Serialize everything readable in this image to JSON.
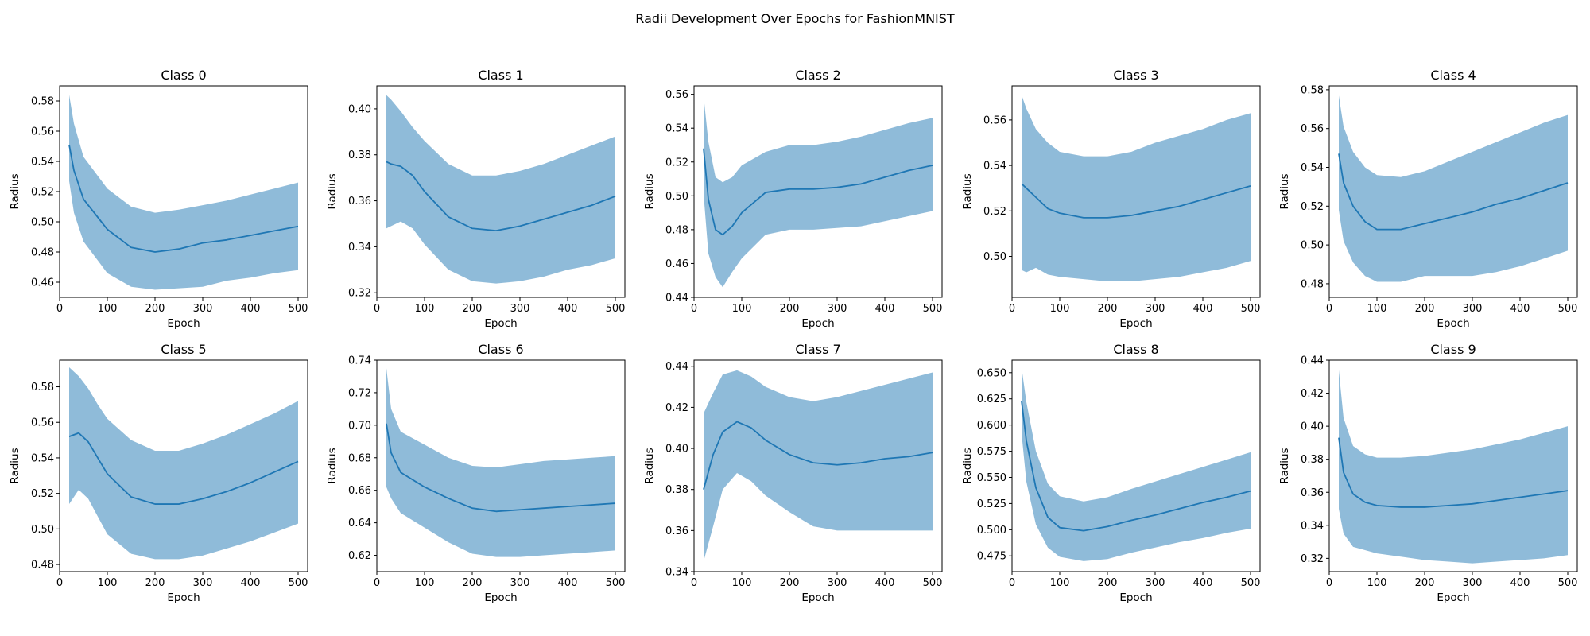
{
  "suptitle": "Radii Development Over Epochs for FashionMNIST",
  "colors": {
    "line": "#1f77b4",
    "band": "#1f77b4",
    "band_opacity": 0.5,
    "axes": "#000000",
    "background": "#ffffff"
  },
  "chart_data": [
    {
      "type": "line",
      "title": "Class 0",
      "xlabel": "Epoch",
      "ylabel": "Radius",
      "xlim": [
        0,
        520
      ],
      "ylim": [
        0.45,
        0.59
      ],
      "xticks": [
        0,
        100,
        200,
        300,
        400,
        500
      ],
      "yticks": [
        0.46,
        0.48,
        0.5,
        0.52,
        0.54,
        0.56,
        0.58
      ],
      "ytick_labels": [
        "0.46",
        "0.48",
        "0.50",
        "0.52",
        "0.54",
        "0.56",
        "0.58"
      ],
      "grid": false,
      "x": [
        20,
        30,
        50,
        100,
        150,
        200,
        250,
        300,
        350,
        400,
        450,
        500
      ],
      "series": [
        {
          "mean": [
            0.551,
            0.534,
            0.515,
            0.495,
            0.483,
            0.48,
            0.482,
            0.486,
            0.488,
            0.491,
            0.494,
            0.497
          ],
          "lower": [
            0.527,
            0.506,
            0.487,
            0.466,
            0.457,
            0.455,
            0.456,
            0.457,
            0.461,
            0.463,
            0.466,
            0.468
          ],
          "upper": [
            0.584,
            0.565,
            0.543,
            0.522,
            0.51,
            0.506,
            0.508,
            0.511,
            0.514,
            0.518,
            0.522,
            0.526
          ]
        }
      ]
    },
    {
      "type": "line",
      "title": "Class 1",
      "xlabel": "Epoch",
      "ylabel": "Radius",
      "xlim": [
        0,
        520
      ],
      "ylim": [
        0.318,
        0.41
      ],
      "xticks": [
        0,
        100,
        200,
        300,
        400,
        500
      ],
      "yticks": [
        0.32,
        0.34,
        0.36,
        0.38,
        0.4
      ],
      "ytick_labels": [
        "0.32",
        "0.34",
        "0.36",
        "0.38",
        "0.40"
      ],
      "grid": false,
      "x": [
        20,
        30,
        50,
        75,
        100,
        150,
        200,
        250,
        300,
        350,
        400,
        450,
        500
      ],
      "series": [
        {
          "mean": [
            0.377,
            0.376,
            0.375,
            0.371,
            0.364,
            0.353,
            0.348,
            0.347,
            0.349,
            0.352,
            0.355,
            0.358,
            0.362
          ],
          "lower": [
            0.348,
            0.349,
            0.351,
            0.348,
            0.341,
            0.33,
            0.325,
            0.324,
            0.325,
            0.327,
            0.33,
            0.332,
            0.335
          ],
          "upper": [
            0.406,
            0.404,
            0.399,
            0.392,
            0.386,
            0.376,
            0.371,
            0.371,
            0.373,
            0.376,
            0.38,
            0.384,
            0.388
          ]
        }
      ]
    },
    {
      "type": "line",
      "title": "Class 2",
      "xlabel": "Epoch",
      "ylabel": "Radius",
      "xlim": [
        0,
        520
      ],
      "ylim": [
        0.44,
        0.565
      ],
      "xticks": [
        0,
        100,
        200,
        300,
        400,
        500
      ],
      "yticks": [
        0.44,
        0.46,
        0.48,
        0.5,
        0.52,
        0.54,
        0.56
      ],
      "ytick_labels": [
        "0.44",
        "0.46",
        "0.48",
        "0.50",
        "0.52",
        "0.54",
        "0.56"
      ],
      "grid": false,
      "x": [
        20,
        30,
        45,
        60,
        80,
        100,
        150,
        200,
        250,
        300,
        350,
        400,
        450,
        500
      ],
      "series": [
        {
          "mean": [
            0.528,
            0.498,
            0.48,
            0.477,
            0.482,
            0.49,
            0.502,
            0.504,
            0.504,
            0.505,
            0.507,
            0.511,
            0.515,
            0.518
          ],
          "lower": [
            0.501,
            0.466,
            0.452,
            0.446,
            0.455,
            0.463,
            0.477,
            0.48,
            0.48,
            0.481,
            0.482,
            0.485,
            0.488,
            0.491
          ],
          "upper": [
            0.559,
            0.532,
            0.511,
            0.508,
            0.511,
            0.518,
            0.526,
            0.53,
            0.53,
            0.532,
            0.535,
            0.539,
            0.543,
            0.546
          ]
        }
      ]
    },
    {
      "type": "line",
      "title": "Class 3",
      "xlabel": "Epoch",
      "ylabel": "Radius",
      "xlim": [
        0,
        520
      ],
      "ylim": [
        0.482,
        0.575
      ],
      "xticks": [
        0,
        100,
        200,
        300,
        400,
        500
      ],
      "yticks": [
        0.5,
        0.52,
        0.54,
        0.56
      ],
      "ytick_labels": [
        "0.50",
        "0.52",
        "0.54",
        "0.56"
      ],
      "grid": false,
      "x": [
        20,
        30,
        50,
        75,
        100,
        150,
        200,
        250,
        300,
        350,
        400,
        450,
        500
      ],
      "series": [
        {
          "mean": [
            0.532,
            0.53,
            0.526,
            0.521,
            0.519,
            0.517,
            0.517,
            0.518,
            0.52,
            0.522,
            0.525,
            0.528,
            0.531
          ],
          "lower": [
            0.494,
            0.493,
            0.495,
            0.492,
            0.491,
            0.49,
            0.489,
            0.489,
            0.49,
            0.491,
            0.493,
            0.495,
            0.498
          ],
          "upper": [
            0.571,
            0.565,
            0.556,
            0.55,
            0.546,
            0.544,
            0.544,
            0.546,
            0.55,
            0.553,
            0.556,
            0.56,
            0.563
          ]
        }
      ]
    },
    {
      "type": "line",
      "title": "Class 4",
      "xlabel": "Epoch",
      "ylabel": "Radius",
      "xlim": [
        0,
        520
      ],
      "ylim": [
        0.473,
        0.582
      ],
      "xticks": [
        0,
        100,
        200,
        300,
        400,
        500
      ],
      "yticks": [
        0.48,
        0.5,
        0.52,
        0.54,
        0.56,
        0.58
      ],
      "ytick_labels": [
        "0.48",
        "0.50",
        "0.52",
        "0.54",
        "0.56",
        "0.58"
      ],
      "grid": false,
      "x": [
        20,
        30,
        50,
        75,
        100,
        150,
        200,
        250,
        300,
        350,
        400,
        450,
        500
      ],
      "series": [
        {
          "mean": [
            0.547,
            0.532,
            0.52,
            0.512,
            0.508,
            0.508,
            0.511,
            0.514,
            0.517,
            0.521,
            0.524,
            0.528,
            0.532
          ],
          "lower": [
            0.518,
            0.502,
            0.491,
            0.484,
            0.481,
            0.481,
            0.484,
            0.484,
            0.484,
            0.486,
            0.489,
            0.493,
            0.497
          ],
          "upper": [
            0.577,
            0.561,
            0.548,
            0.54,
            0.536,
            0.535,
            0.538,
            0.543,
            0.548,
            0.553,
            0.558,
            0.563,
            0.567
          ]
        }
      ]
    },
    {
      "type": "line",
      "title": "Class 5",
      "xlabel": "Epoch",
      "ylabel": "Radius",
      "xlim": [
        0,
        520
      ],
      "ylim": [
        0.476,
        0.595
      ],
      "xticks": [
        0,
        100,
        200,
        300,
        400,
        500
      ],
      "yticks": [
        0.48,
        0.5,
        0.52,
        0.54,
        0.56,
        0.58
      ],
      "ytick_labels": [
        "0.48",
        "0.50",
        "0.52",
        "0.54",
        "0.56",
        "0.58"
      ],
      "grid": false,
      "x": [
        20,
        40,
        60,
        80,
        100,
        150,
        200,
        250,
        300,
        350,
        400,
        450,
        500
      ],
      "series": [
        {
          "mean": [
            0.552,
            0.554,
            0.549,
            0.54,
            0.531,
            0.518,
            0.514,
            0.514,
            0.517,
            0.521,
            0.526,
            0.532,
            0.538
          ],
          "lower": [
            0.514,
            0.522,
            0.517,
            0.507,
            0.497,
            0.486,
            0.483,
            0.483,
            0.485,
            0.489,
            0.493,
            0.498,
            0.503
          ],
          "upper": [
            0.591,
            0.586,
            0.579,
            0.57,
            0.562,
            0.55,
            0.544,
            0.544,
            0.548,
            0.553,
            0.559,
            0.565,
            0.572
          ]
        }
      ]
    },
    {
      "type": "line",
      "title": "Class 6",
      "xlabel": "Epoch",
      "ylabel": "Radius",
      "xlim": [
        0,
        520
      ],
      "ylim": [
        0.61,
        0.74
      ],
      "xticks": [
        0,
        100,
        200,
        300,
        400,
        500
      ],
      "yticks": [
        0.62,
        0.64,
        0.66,
        0.68,
        0.7,
        0.72,
        0.74
      ],
      "ytick_labels": [
        "0.62",
        "0.64",
        "0.66",
        "0.68",
        "0.70",
        "0.72",
        "0.74"
      ],
      "grid": false,
      "x": [
        20,
        30,
        50,
        100,
        150,
        200,
        250,
        300,
        350,
        400,
        450,
        500
      ],
      "series": [
        {
          "mean": [
            0.701,
            0.683,
            0.671,
            0.662,
            0.655,
            0.649,
            0.647,
            0.648,
            0.649,
            0.65,
            0.651,
            0.652
          ],
          "lower": [
            0.662,
            0.655,
            0.646,
            0.637,
            0.628,
            0.621,
            0.619,
            0.619,
            0.62,
            0.621,
            0.622,
            0.623
          ],
          "upper": [
            0.735,
            0.71,
            0.696,
            0.688,
            0.68,
            0.675,
            0.674,
            0.676,
            0.678,
            0.679,
            0.68,
            0.681
          ]
        }
      ]
    },
    {
      "type": "line",
      "title": "Class 7",
      "xlabel": "Epoch",
      "ylabel": "Radius",
      "xlim": [
        0,
        520
      ],
      "ylim": [
        0.34,
        0.443
      ],
      "xticks": [
        0,
        100,
        200,
        300,
        400,
        500
      ],
      "yticks": [
        0.34,
        0.36,
        0.38,
        0.4,
        0.42,
        0.44
      ],
      "ytick_labels": [
        "0.34",
        "0.36",
        "0.38",
        "0.40",
        "0.42",
        "0.44"
      ],
      "grid": false,
      "x": [
        20,
        40,
        60,
        90,
        120,
        150,
        200,
        250,
        300,
        350,
        400,
        450,
        500
      ],
      "series": [
        {
          "mean": [
            0.38,
            0.397,
            0.408,
            0.413,
            0.41,
            0.404,
            0.397,
            0.393,
            0.392,
            0.393,
            0.395,
            0.396,
            0.398
          ],
          "lower": [
            0.345,
            0.362,
            0.38,
            0.388,
            0.384,
            0.377,
            0.369,
            0.362,
            0.36,
            0.36,
            0.36,
            0.36,
            0.36
          ],
          "upper": [
            0.417,
            0.427,
            0.436,
            0.438,
            0.435,
            0.43,
            0.425,
            0.423,
            0.425,
            0.428,
            0.431,
            0.434,
            0.437
          ]
        }
      ]
    },
    {
      "type": "line",
      "title": "Class 8",
      "xlabel": "Epoch",
      "ylabel": "Radius",
      "xlim": [
        0,
        520
      ],
      "ylim": [
        0.46,
        0.662
      ],
      "xticks": [
        0,
        100,
        200,
        300,
        400,
        500
      ],
      "yticks": [
        0.475,
        0.5,
        0.525,
        0.55,
        0.575,
        0.6,
        0.625,
        0.65
      ],
      "ytick_labels": [
        "0.475",
        "0.500",
        "0.525",
        "0.550",
        "0.575",
        "0.600",
        "0.625",
        "0.650"
      ],
      "grid": false,
      "x": [
        20,
        30,
        50,
        75,
        100,
        150,
        200,
        250,
        300,
        350,
        400,
        450,
        500
      ],
      "series": [
        {
          "mean": [
            0.623,
            0.585,
            0.54,
            0.512,
            0.502,
            0.499,
            0.503,
            0.509,
            0.514,
            0.52,
            0.526,
            0.531,
            0.537
          ],
          "lower": [
            0.592,
            0.546,
            0.505,
            0.483,
            0.474,
            0.47,
            0.472,
            0.478,
            0.483,
            0.488,
            0.492,
            0.497,
            0.501
          ],
          "upper": [
            0.655,
            0.622,
            0.575,
            0.544,
            0.532,
            0.527,
            0.531,
            0.539,
            0.546,
            0.553,
            0.56,
            0.567,
            0.574
          ]
        }
      ]
    },
    {
      "type": "line",
      "title": "Class 9",
      "xlabel": "Epoch",
      "ylabel": "Radius",
      "xlim": [
        0,
        520
      ],
      "ylim": [
        0.312,
        0.44
      ],
      "xticks": [
        0,
        100,
        200,
        300,
        400,
        500
      ],
      "yticks": [
        0.32,
        0.34,
        0.36,
        0.38,
        0.4,
        0.42,
        0.44
      ],
      "ytick_labels": [
        "0.32",
        "0.34",
        "0.36",
        "0.38",
        "0.40",
        "0.42",
        "0.44"
      ],
      "grid": false,
      "x": [
        20,
        30,
        50,
        75,
        100,
        150,
        200,
        250,
        300,
        350,
        400,
        450,
        500
      ],
      "series": [
        {
          "mean": [
            0.393,
            0.372,
            0.359,
            0.354,
            0.352,
            0.351,
            0.351,
            0.352,
            0.353,
            0.355,
            0.357,
            0.359,
            0.361
          ],
          "lower": [
            0.35,
            0.335,
            0.327,
            0.325,
            0.323,
            0.321,
            0.319,
            0.318,
            0.317,
            0.318,
            0.319,
            0.32,
            0.322
          ],
          "upper": [
            0.434,
            0.405,
            0.388,
            0.383,
            0.381,
            0.381,
            0.382,
            0.384,
            0.386,
            0.389,
            0.392,
            0.396,
            0.4
          ]
        }
      ]
    }
  ]
}
